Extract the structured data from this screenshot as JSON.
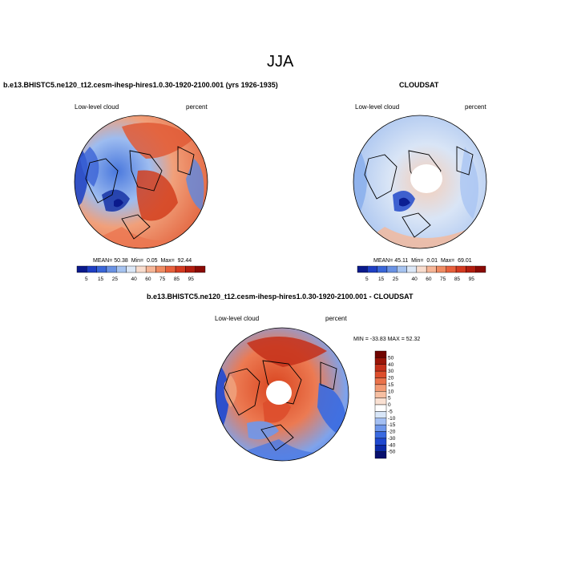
{
  "page_title": "JJA",
  "colors": {
    "palette_abs": [
      "#0a1a8c",
      "#1f3fc4",
      "#3a66d8",
      "#6a92e3",
      "#a6c3f0",
      "#dbe7f6",
      "#f8dccd",
      "#f6b596",
      "#f08b62",
      "#e8603c",
      "#d43a20",
      "#b21d0f",
      "#8a0a05"
    ],
    "palette_diff": [
      "#08106e",
      "#0c2aa8",
      "#1f48d0",
      "#3a6ae0",
      "#6f97ea",
      "#a3bff3",
      "#d8e6f8",
      "#ffffff",
      "#f9e0d2",
      "#f6bfa2",
      "#f29a74",
      "#ea724a",
      "#dd4e2c",
      "#c4301a",
      "#9a1508",
      "#700400"
    ]
  },
  "chart_data": [
    {
      "type": "heatmap",
      "projection": "north polar stereographic",
      "title": "b.e13.BHISTC5.ne120_t12.cesm-ihesp-hires1.0.30-1920-2100.001 (yrs 1926-1935)",
      "left_label": "Low-level cloud",
      "right_label": "percent",
      "stats": {
        "mean_label": "MEAN=",
        "mean": "50.38",
        "min_label": "Min=",
        "min": "0.05",
        "max_label": "Max=",
        "max": "92.44"
      },
      "colorbar": {
        "ticks": [
          "5",
          "15",
          "25",
          "40",
          "60",
          "75",
          "85",
          "95"
        ]
      }
    },
    {
      "type": "heatmap",
      "projection": "north polar stereographic",
      "title": "CLOUDSAT",
      "left_label": "Low-level cloud",
      "right_label": "percent",
      "stats": {
        "mean_label": "MEAN=",
        "mean": "45.11",
        "min_label": "Min=",
        "min": "0.01",
        "max_label": "Max=",
        "max": "69.01"
      },
      "colorbar": {
        "ticks": [
          "5",
          "15",
          "25",
          "40",
          "60",
          "75",
          "85",
          "95"
        ]
      }
    },
    {
      "type": "heatmap",
      "projection": "north polar stereographic",
      "title": "b.e13.BHISTC5.ne120_t12.cesm-ihesp-hires1.0.30-1920-2100.001 - CLOUDSAT",
      "left_label": "Low-level cloud",
      "right_label": "percent",
      "stats_text": "MIN = -33.83 MAX =  52.32",
      "colorbar": {
        "ticks": [
          "50",
          "40",
          "30",
          "20",
          "15",
          "10",
          "5",
          "0",
          "-5",
          "-10",
          "-15",
          "-20",
          "-30",
          "-40",
          "-50"
        ]
      }
    }
  ]
}
